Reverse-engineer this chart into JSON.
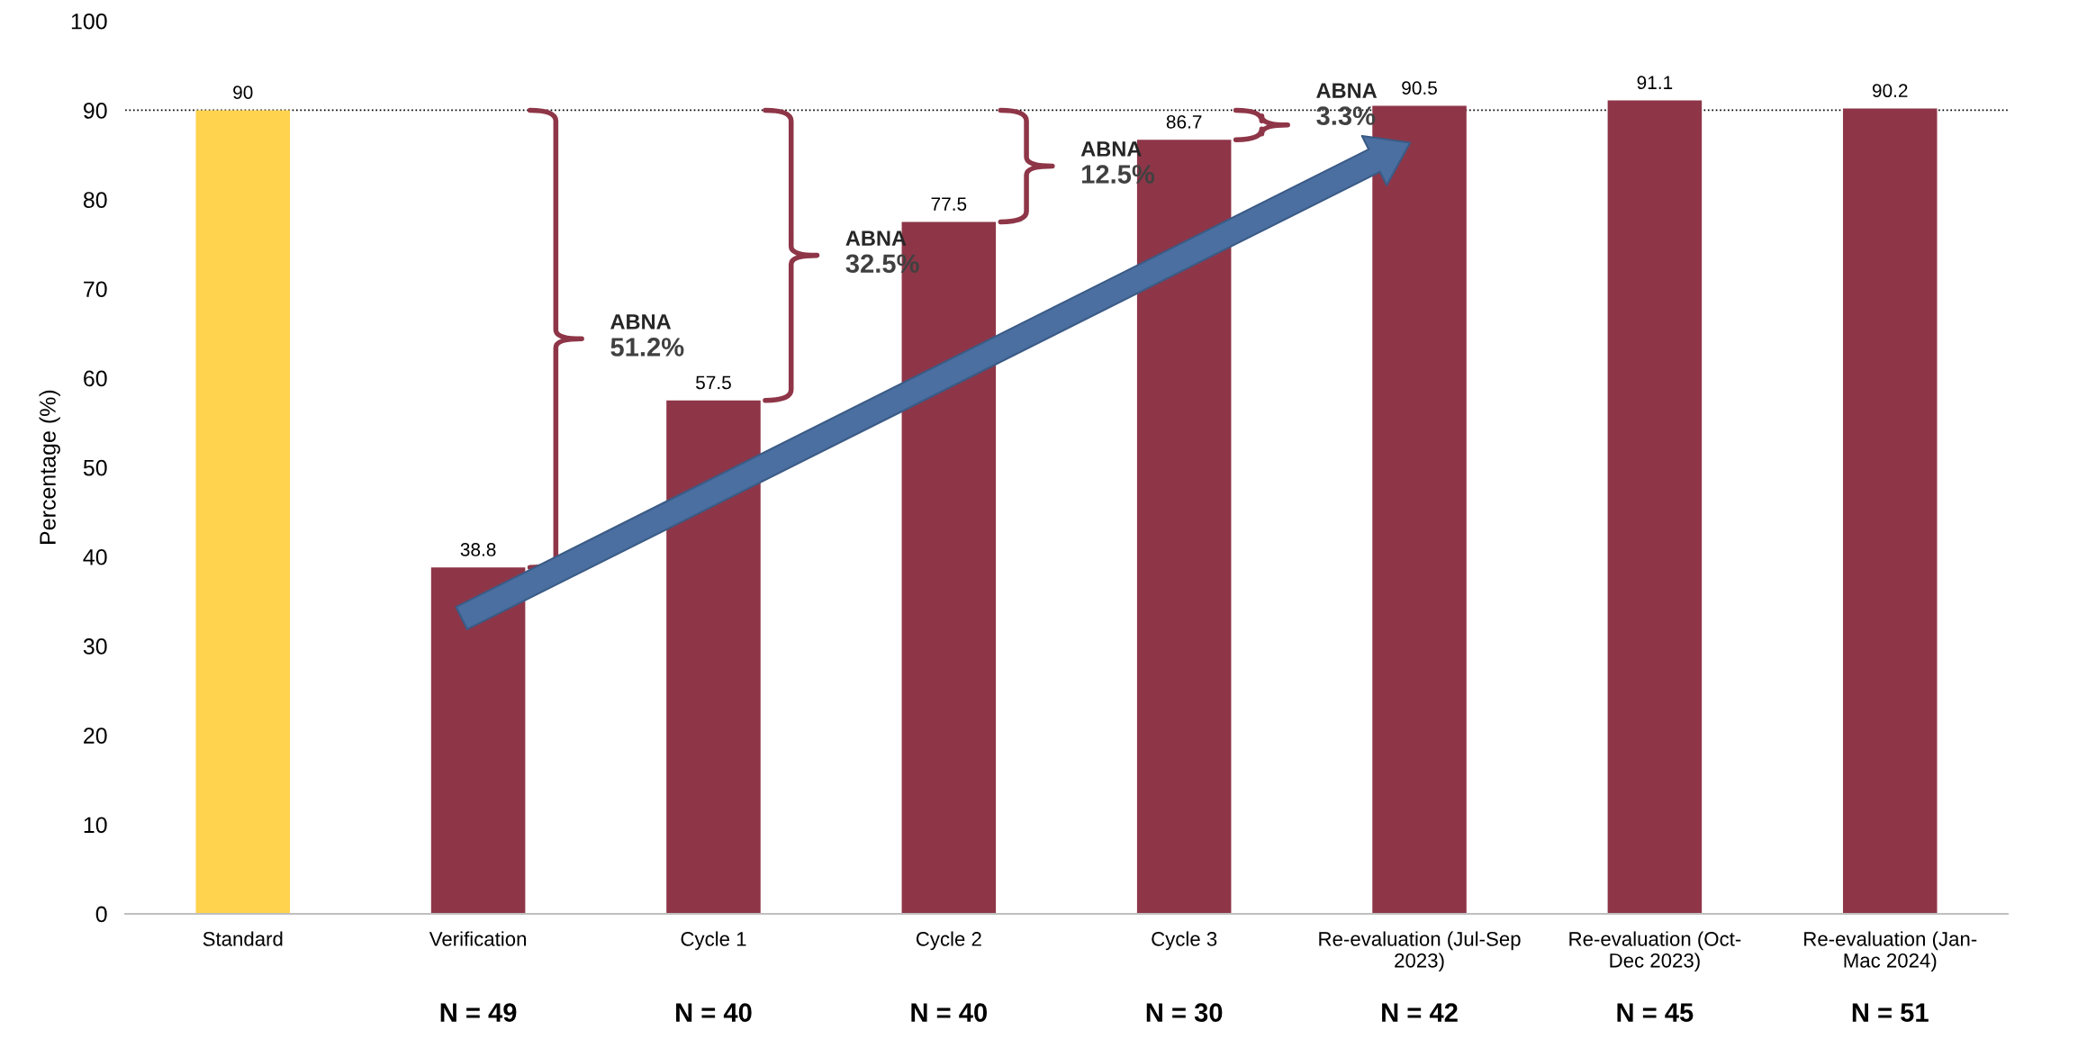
{
  "chart_data": {
    "type": "bar",
    "ylabel": "Percentage (%)",
    "categories": [
      "Standard",
      "Verification",
      "Cycle 1",
      "Cycle 2",
      "Cycle 3",
      "Re-evaluation (Jul-Sep\n2023)",
      "Re-evaluation (Oct-\nDec 2023)",
      "Re-evaluation (Jan-\nMac 2024)"
    ],
    "values": [
      90,
      38.8,
      57.5,
      77.5,
      86.7,
      90.5,
      91.1,
      90.2
    ],
    "colors": [
      "#ffd34e",
      "#8e3648",
      "#8e3648",
      "#8e3648",
      "#8e3648",
      "#8e3648",
      "#8e3648",
      "#8e3648"
    ],
    "data_labels": true,
    "ylim": [
      0,
      100
    ],
    "yticks": [
      0,
      10,
      20,
      30,
      40,
      50,
      60,
      70,
      80,
      90,
      100
    ],
    "grid": false,
    "legend": false,
    "ref_lines": [
      {
        "axis": "y",
        "value": 90,
        "label": null,
        "color": "#000000",
        "line_style": "dotted"
      }
    ],
    "annotations": [
      "ABNA\n51.2%",
      "ABNA\n32.5%",
      "ABNA\n12.5%",
      "ABNA\n3.3%",
      "N = 49",
      "N = 40",
      "N = 40",
      "N = 30",
      "N = 42",
      "N = 45",
      "N = 51"
    ]
  }
}
